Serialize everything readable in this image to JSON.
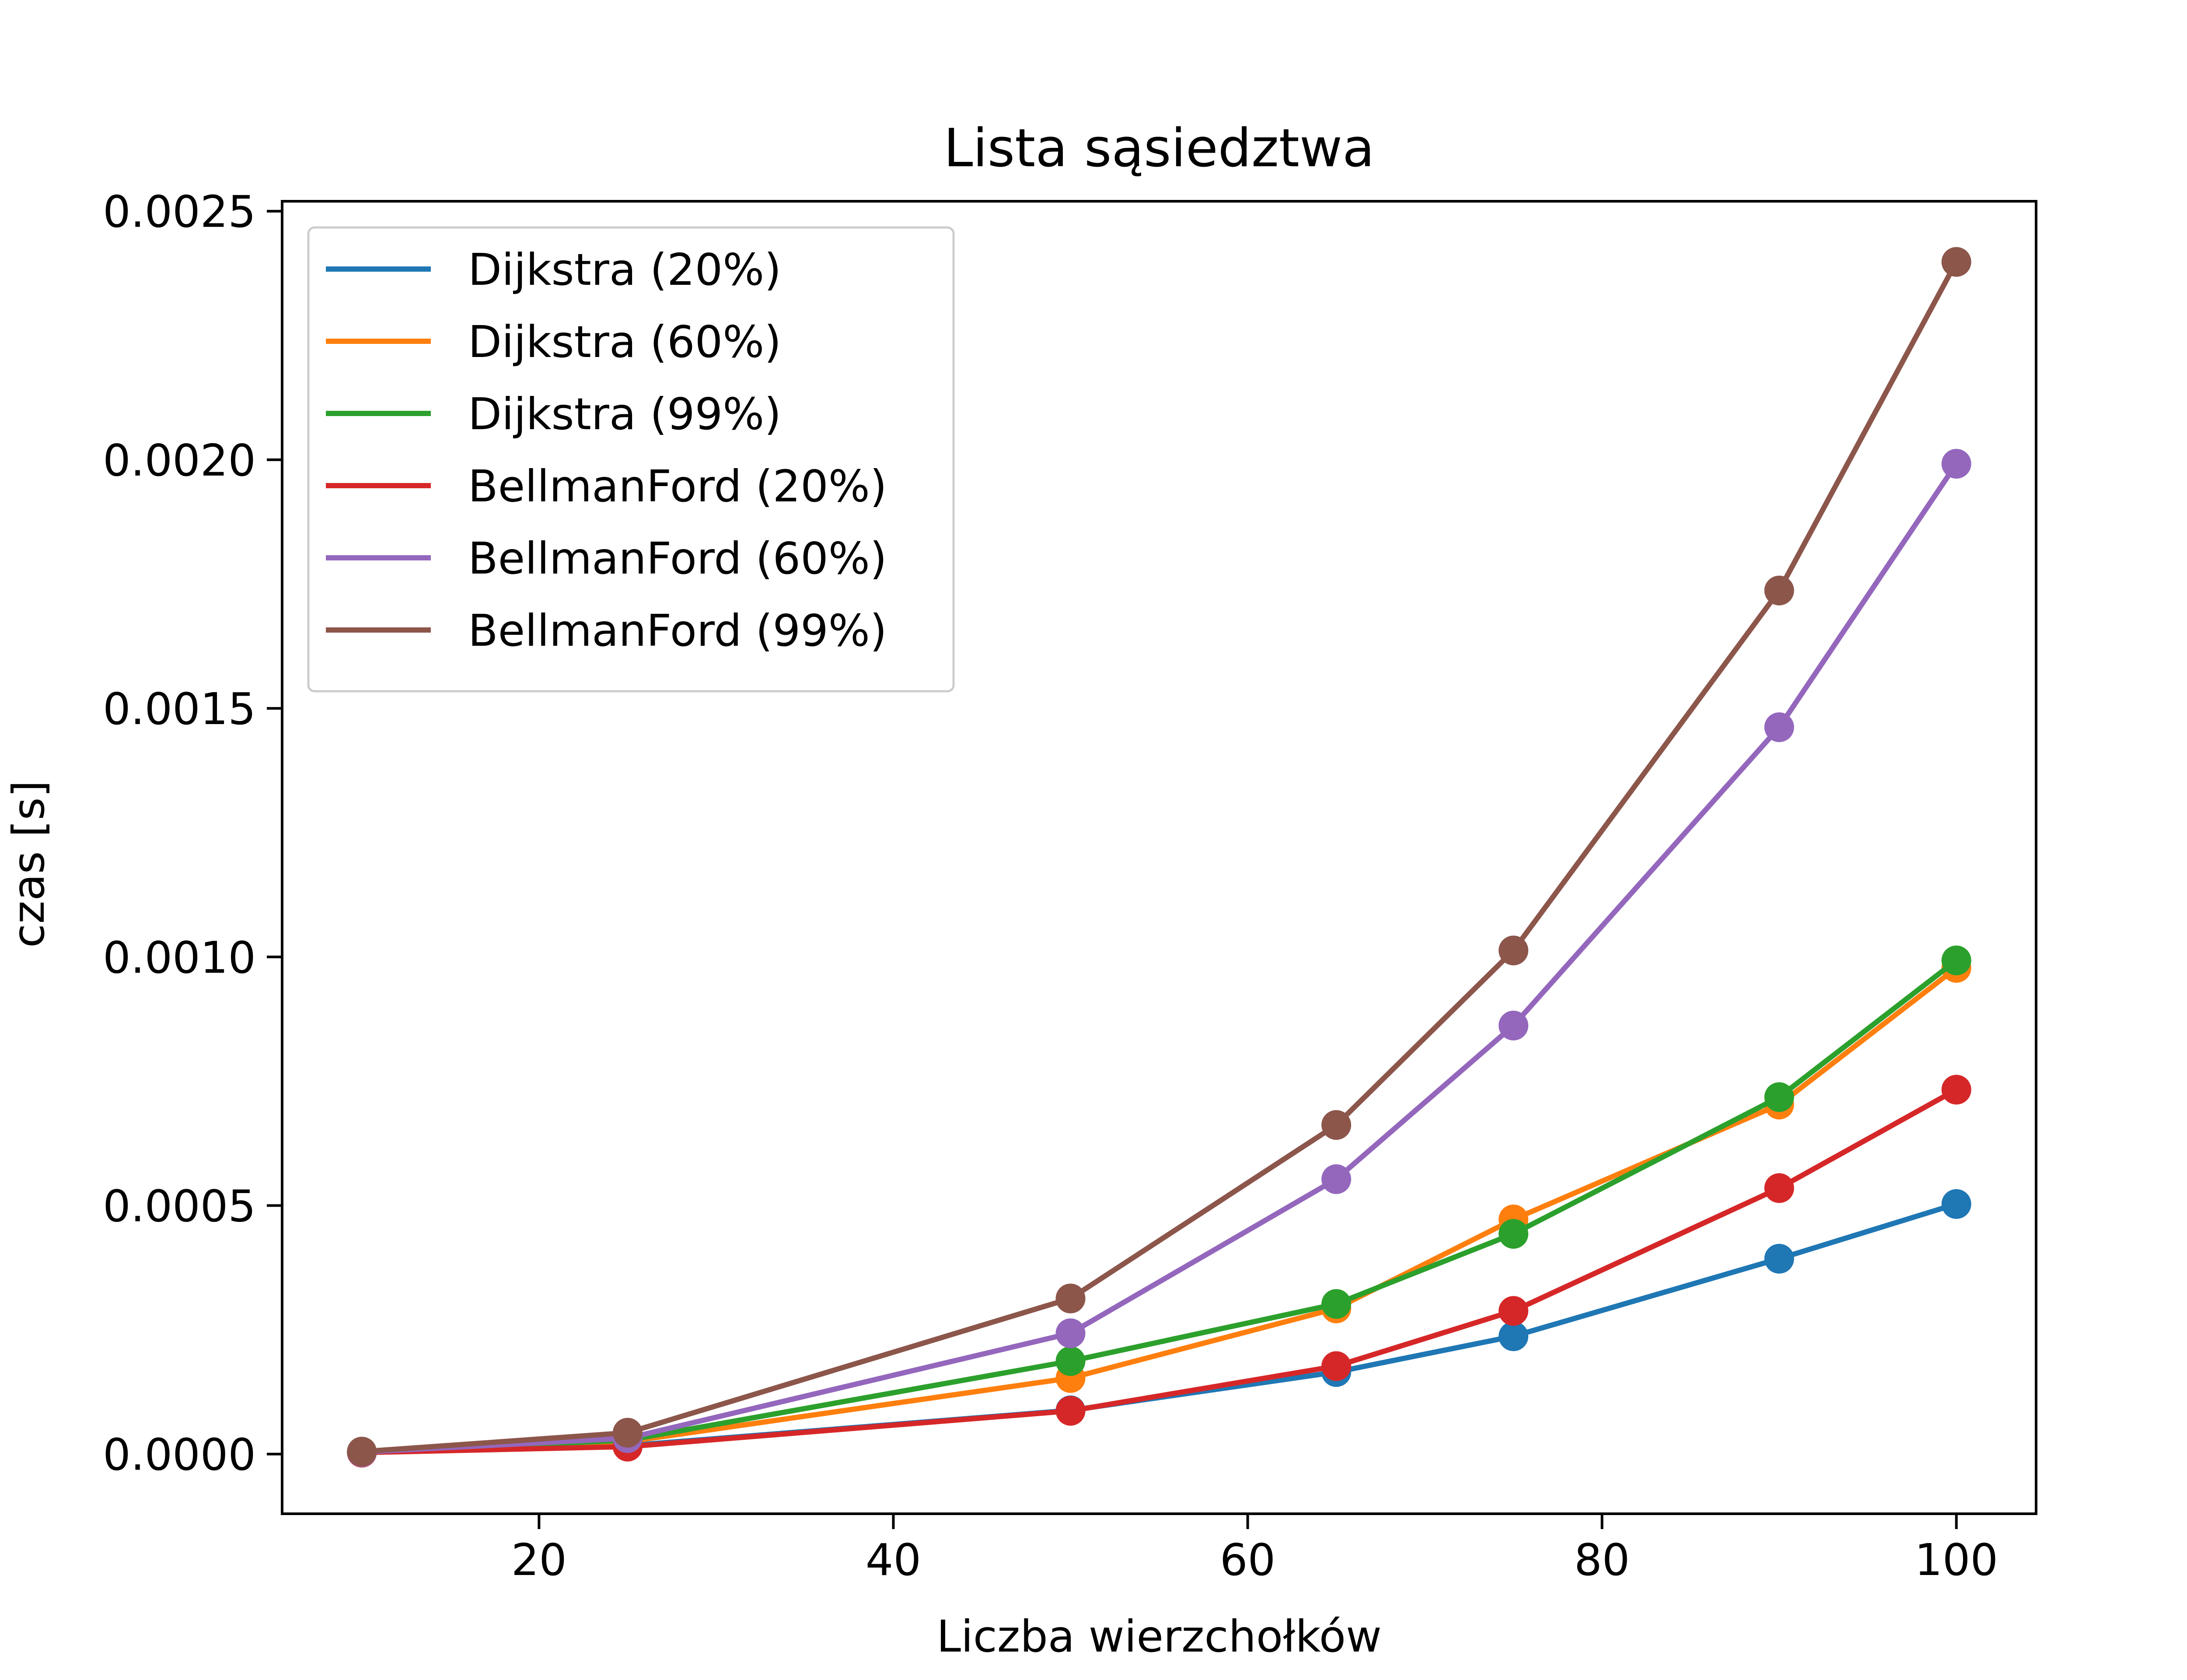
{
  "chart_data": {
    "type": "line",
    "title": "Lista sąsiedztwa",
    "xlabel": "Liczba wierzchołków",
    "ylabel": "czas [s]",
    "x": [
      10,
      25,
      50,
      65,
      75,
      90,
      100
    ],
    "xlim": [
      5.5,
      104.5
    ],
    "ylim": [
      -0.00012,
      0.00252
    ],
    "xticks": [
      20,
      40,
      60,
      80,
      100
    ],
    "xtick_labels": [
      "20",
      "40",
      "60",
      "80",
      "100"
    ],
    "yticks": [
      0,
      0.0005,
      0.001,
      0.0015,
      0.002,
      0.0025
    ],
    "ytick_labels": [
      "0.0000",
      "0.0005",
      "0.0010",
      "0.0015",
      "0.0020",
      "0.0025"
    ],
    "grid": false,
    "legend_position": "top-left",
    "markers": "circle",
    "series": [
      {
        "name": "Dijkstra (20%)",
        "color": "#1f77b4",
        "values": [
          3e-06,
          1.7e-05,
          8.8e-05,
          0.000165,
          0.000237,
          0.000393,
          0.000503
        ]
      },
      {
        "name": "Dijkstra (60%)",
        "color": "#ff7f0e",
        "values": [
          4e-06,
          2.5e-05,
          0.000153,
          0.000293,
          0.000472,
          0.000703,
          0.000978
        ]
      },
      {
        "name": "Dijkstra (99%)",
        "color": "#2ca02c",
        "values": [
          4e-06,
          2.8e-05,
          0.000187,
          0.000302,
          0.000443,
          0.000718,
          0.000993
        ]
      },
      {
        "name": "BellmanFord (20%)",
        "color": "#d62728",
        "values": [
          3e-06,
          1.5e-05,
          8.7e-05,
          0.000177,
          0.000288,
          0.000535,
          0.000733
        ]
      },
      {
        "name": "BellmanFord (60%)",
        "color": "#9467bd",
        "values": [
          4e-06,
          3.2e-05,
          0.000243,
          0.000553,
          0.000862,
          0.001462,
          0.001992
        ]
      },
      {
        "name": "BellmanFord (99%)",
        "color": "#8c564b",
        "values": [
          5e-06,
          4.3e-05,
          0.000313,
          0.000662,
          0.001013,
          0.001737,
          0.002398
        ]
      }
    ]
  }
}
